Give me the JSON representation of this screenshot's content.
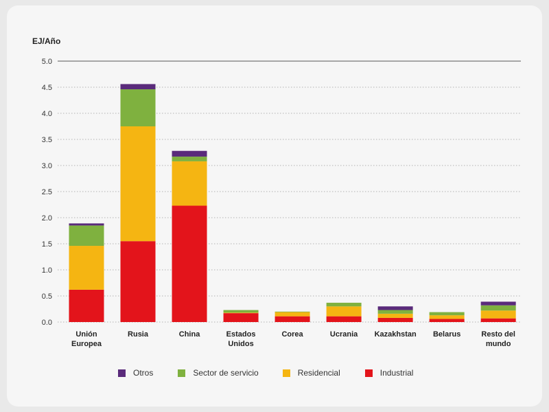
{
  "chart_data": {
    "type": "bar",
    "stacked": true,
    "ylabel": "EJ/Año",
    "ylim": [
      0,
      5.0
    ],
    "yticks": [
      "0.0",
      "0.5",
      "1.0",
      "1.5",
      "2.0",
      "2.5",
      "3.0",
      "3.5",
      "4.0",
      "4.5",
      "5.0"
    ],
    "grid": "horizontal-dotted",
    "legend_position": "bottom",
    "categories": [
      [
        "Unión",
        "Europea"
      ],
      [
        "Rusia"
      ],
      [
        "China"
      ],
      [
        "Estados",
        "Unidos"
      ],
      [
        "Corea"
      ],
      [
        "Ucrania"
      ],
      [
        "Kazakhstan"
      ],
      [
        "Belarus"
      ],
      [
        "Resto del",
        "mundo"
      ]
    ],
    "series": [
      {
        "name": "Industrial",
        "color": "#e3141b",
        "values": [
          0.62,
          1.55,
          2.23,
          0.17,
          0.11,
          0.11,
          0.08,
          0.06,
          0.07
        ]
      },
      {
        "name": "Residencial",
        "color": "#f5b512",
        "values": [
          0.84,
          2.2,
          0.85,
          0.01,
          0.08,
          0.19,
          0.08,
          0.07,
          0.15
        ]
      },
      {
        "name": "Sector de servicio",
        "color": "#7fb13f",
        "values": [
          0.39,
          0.71,
          0.09,
          0.05,
          0.01,
          0.07,
          0.07,
          0.06,
          0.1
        ]
      },
      {
        "name": "Otros",
        "color": "#5a2b7b",
        "values": [
          0.04,
          0.1,
          0.11,
          0.0,
          0.0,
          0.0,
          0.07,
          0.0,
          0.07
        ]
      }
    ],
    "legend_order": [
      "Otros",
      "Sector de servicio",
      "Residencial",
      "Industrial"
    ]
  }
}
